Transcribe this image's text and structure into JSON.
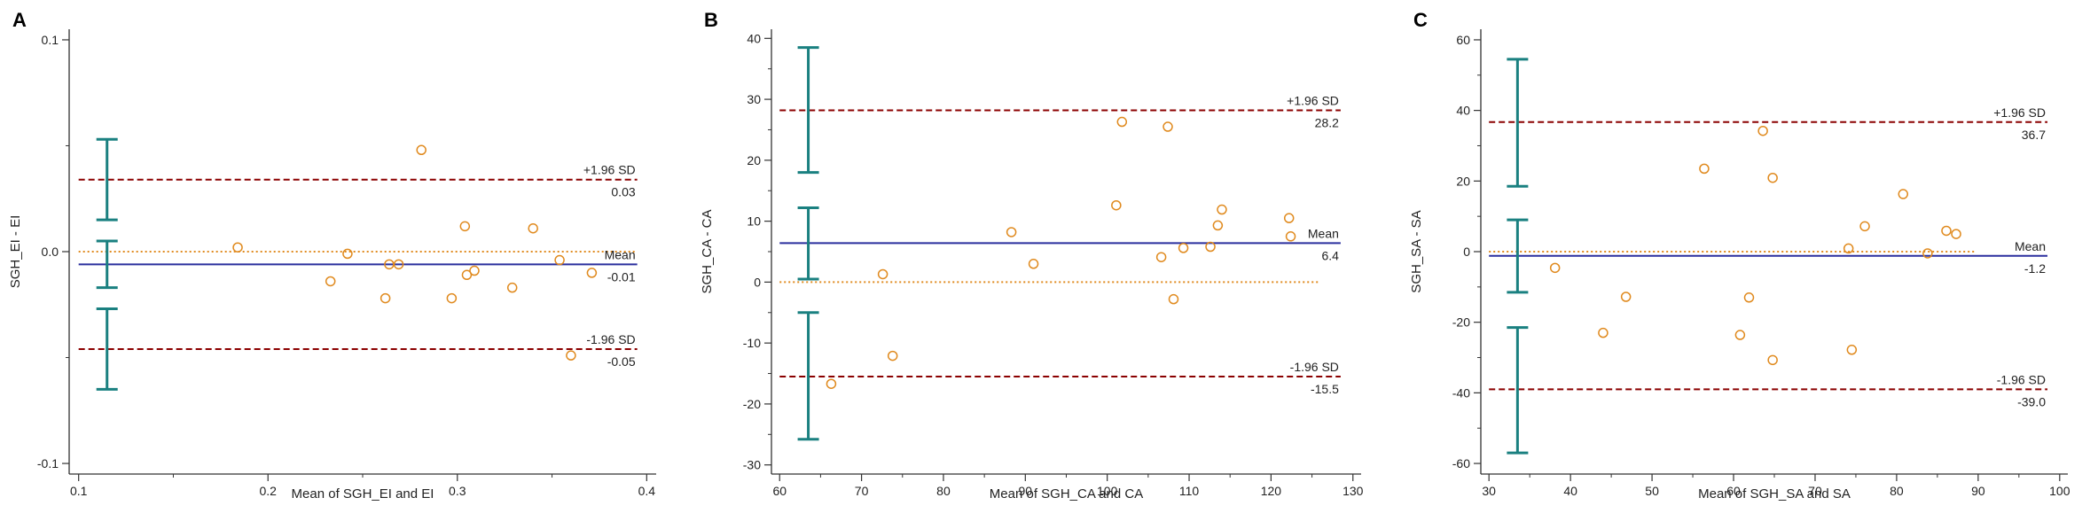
{
  "figure": {
    "palette": {
      "axis": "#333333",
      "mean_line": "#2a2f9e",
      "loa_line": "#8b0000",
      "zero_line": "#e08a1e",
      "ci_bar": "#1a8080",
      "point": "#e08a1e",
      "text": "#222222"
    }
  },
  "chart_data": [
    {
      "type": "scatter",
      "panel_label": "A",
      "title": "",
      "xlabel": "Mean of SGH_EI and EI",
      "ylabel": "SGH_EI - EI",
      "xlim": [
        0.095,
        0.405
      ],
      "ylim": [
        -0.105,
        0.105
      ],
      "xticks": [
        0.1,
        0.2,
        0.3,
        0.4
      ],
      "xtick_labels": [
        "0.1",
        "0.2",
        "0.3",
        "0.4"
      ],
      "yticks": [
        -0.1,
        0.0,
        0.1
      ],
      "ytick_labels": [
        "-0.1",
        "0.0",
        "0.1"
      ],
      "minor_x": [
        0.15,
        0.25,
        0.35
      ],
      "minor_y": [
        -0.05,
        0.05
      ],
      "zero_line_x": [
        0.1,
        0.395
      ],
      "line_x": [
        0.1,
        0.395
      ],
      "mean": -0.006,
      "upper": 0.034,
      "lower": -0.046,
      "mean_label": "Mean",
      "mean_value_label": "-0.01",
      "upper_label": "+1.96 SD",
      "upper_value_label": "0.03",
      "lower_label": "-1.96 SD",
      "lower_value_label": "-0.05",
      "ci_x": 0.115,
      "ci_upper": [
        0.015,
        0.053
      ],
      "ci_mean": [
        -0.017,
        0.005
      ],
      "ci_lower": [
        -0.065,
        -0.027
      ],
      "points": [
        {
          "x": 0.184,
          "y": 0.002
        },
        {
          "x": 0.233,
          "y": -0.014
        },
        {
          "x": 0.242,
          "y": -0.001
        },
        {
          "x": 0.262,
          "y": -0.022
        },
        {
          "x": 0.264,
          "y": -0.006
        },
        {
          "x": 0.269,
          "y": -0.006
        },
        {
          "x": 0.281,
          "y": 0.048
        },
        {
          "x": 0.297,
          "y": -0.022
        },
        {
          "x": 0.304,
          "y": 0.012
        },
        {
          "x": 0.305,
          "y": -0.011
        },
        {
          "x": 0.309,
          "y": -0.009
        },
        {
          "x": 0.329,
          "y": -0.017
        },
        {
          "x": 0.34,
          "y": 0.011
        },
        {
          "x": 0.354,
          "y": -0.004
        },
        {
          "x": 0.36,
          "y": -0.049
        },
        {
          "x": 0.371,
          "y": -0.01
        }
      ]
    },
    {
      "type": "scatter",
      "panel_label": "B",
      "title": "",
      "xlabel": "Mean of SGH_CA and CA",
      "ylabel": "SGH_CA - CA",
      "xlim": [
        59,
        131
      ],
      "ylim": [
        -31.5,
        41.5
      ],
      "xticks": [
        60,
        70,
        80,
        90,
        100,
        110,
        120,
        130
      ],
      "xtick_labels": [
        "60",
        "70",
        "80",
        "90",
        "100",
        "110",
        "120",
        "130"
      ],
      "yticks": [
        -30,
        -20,
        -10,
        0,
        10,
        20,
        30,
        40
      ],
      "ytick_labels": [
        "-30",
        "-20",
        "-10",
        "0",
        "10",
        "20",
        "30",
        "40"
      ],
      "minor_x": [
        65,
        75,
        85,
        95,
        105,
        115,
        125
      ],
      "minor_y": [
        -25,
        -15,
        -5,
        5,
        15,
        25,
        35
      ],
      "zero_line_x": [
        60,
        126
      ],
      "line_x": [
        60,
        128.5
      ],
      "mean": 6.4,
      "upper": 28.2,
      "lower": -15.5,
      "mean_label": "Mean",
      "mean_value_label": "6.4",
      "upper_label": "+1.96 SD",
      "upper_value_label": "28.2",
      "lower_label": "-1.96 SD",
      "lower_value_label": "-15.5",
      "ci_x": 63.5,
      "ci_upper": [
        18,
        38.5
      ],
      "ci_mean": [
        0.5,
        12.2
      ],
      "ci_lower": [
        -25.8,
        -5
      ],
      "points": [
        {
          "x": 66.3,
          "y": -16.7
        },
        {
          "x": 72.6,
          "y": 1.3
        },
        {
          "x": 73.8,
          "y": -12.1
        },
        {
          "x": 88.3,
          "y": 8.2
        },
        {
          "x": 91,
          "y": 3
        },
        {
          "x": 101.1,
          "y": 12.6
        },
        {
          "x": 101.8,
          "y": 26.3
        },
        {
          "x": 106.6,
          "y": 4.1
        },
        {
          "x": 107.4,
          "y": 25.5
        },
        {
          "x": 108.1,
          "y": -2.8
        },
        {
          "x": 109.3,
          "y": 5.6
        },
        {
          "x": 112.6,
          "y": 5.8
        },
        {
          "x": 113.5,
          "y": 9.3
        },
        {
          "x": 114,
          "y": 11.9
        },
        {
          "x": 122.2,
          "y": 10.5
        },
        {
          "x": 122.4,
          "y": 7.5
        }
      ]
    },
    {
      "type": "scatter",
      "panel_label": "C",
      "title": "",
      "xlabel": "Mean of SGH_SA and SA",
      "ylabel": "SGH_SA - SA",
      "xlim": [
        29,
        101
      ],
      "ylim": [
        -63,
        63
      ],
      "xticks": [
        30,
        40,
        50,
        60,
        70,
        80,
        90,
        100
      ],
      "xtick_labels": [
        "30",
        "40",
        "50",
        "60",
        "70",
        "80",
        "90",
        "100"
      ],
      "yticks": [
        -60,
        -40,
        -20,
        0,
        20,
        40,
        60
      ],
      "ytick_labels": [
        "-60",
        "-40",
        "-20",
        "0",
        "20",
        "40",
        "60"
      ],
      "minor_x": [
        35,
        45,
        55,
        65,
        75,
        85,
        95
      ],
      "minor_y": [
        -50,
        -30,
        -10,
        10,
        30,
        50
      ],
      "zero_line_x": [
        30,
        89.5
      ],
      "line_x": [
        30,
        98.5
      ],
      "mean": -1.2,
      "upper": 36.7,
      "lower": -39.0,
      "mean_label": "Mean",
      "mean_value_label": "-1.2",
      "upper_label": "+1.96 SD",
      "upper_value_label": "36.7",
      "lower_label": "-1.96 SD",
      "lower_value_label": "-39.0",
      "ci_x": 33.5,
      "ci_upper": [
        18.5,
        54.5
      ],
      "ci_mean": [
        -11.5,
        9
      ],
      "ci_lower": [
        -57,
        -21.5
      ],
      "points": [
        {
          "x": 38.1,
          "y": -4.6
        },
        {
          "x": 44,
          "y": -23
        },
        {
          "x": 46.8,
          "y": -12.8
        },
        {
          "x": 56.4,
          "y": 23.5
        },
        {
          "x": 60.8,
          "y": -23.6
        },
        {
          "x": 61.9,
          "y": -13
        },
        {
          "x": 63.6,
          "y": 34.2
        },
        {
          "x": 64.8,
          "y": -30.7
        },
        {
          "x": 64.8,
          "y": 20.9
        },
        {
          "x": 74.1,
          "y": 0.9
        },
        {
          "x": 74.5,
          "y": -27.8
        },
        {
          "x": 76.1,
          "y": 7.2
        },
        {
          "x": 80.8,
          "y": 16.3
        },
        {
          "x": 83.8,
          "y": -0.5
        },
        {
          "x": 86.1,
          "y": 5.9
        },
        {
          "x": 87.3,
          "y": 5
        }
      ]
    }
  ]
}
